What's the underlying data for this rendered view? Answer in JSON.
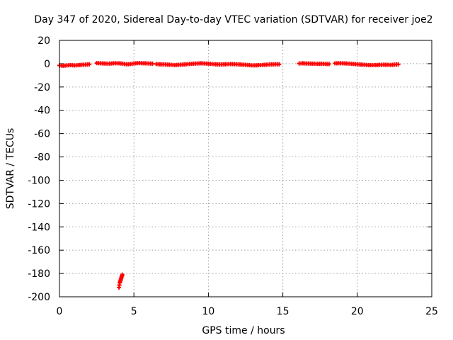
{
  "chart_data": {
    "type": "scatter",
    "title": "Day 347 of 2020, Sidereal Day-to-day VTEC variation (SDTVAR) for receiver joe2",
    "xlabel": "GPS time / hours",
    "ylabel": "SDTVAR / TECUs",
    "xlim": [
      0,
      25
    ],
    "ylim": [
      -200,
      20
    ],
    "x_ticks": [
      0,
      5,
      10,
      15,
      20,
      25
    ],
    "y_ticks": [
      20,
      0,
      -20,
      -40,
      -60,
      -80,
      -100,
      -120,
      -140,
      -160,
      -180,
      -200
    ],
    "grid": true,
    "marker": "plus",
    "color": "#ff0000",
    "series": [
      {
        "segments": [
          {
            "x": [
              0.0,
              0.25,
              0.5,
              0.75,
              1.0,
              1.25,
              1.5,
              1.75,
              2.0
            ],
            "y": [
              -1.5,
              -1.8,
              -1.5,
              -1.2,
              -1.5,
              -1.3,
              -1.0,
              -0.8,
              -0.5
            ]
          },
          {
            "x": [
              2.5,
              2.75,
              3.0,
              3.25,
              3.5,
              3.75,
              4.0,
              4.25,
              4.5,
              4.75,
              5.0,
              5.25,
              5.5,
              5.75,
              6.0,
              6.25
            ],
            "y": [
              0.5,
              0.3,
              0.2,
              0.0,
              0.2,
              0.4,
              0.3,
              0.0,
              -0.5,
              -0.3,
              0.2,
              0.5,
              0.4,
              0.3,
              0.2,
              0.0
            ]
          },
          {
            "x": [
              6.5,
              6.75,
              7.0,
              7.25,
              7.5,
              7.75,
              8.0,
              8.25,
              8.5,
              8.75,
              9.0,
              9.25,
              9.5,
              9.75,
              10.0,
              10.25,
              10.5,
              10.75,
              11.0,
              11.25,
              11.5,
              11.75,
              12.0,
              12.25,
              12.5,
              12.75,
              13.0,
              13.25,
              13.5,
              13.75,
              14.0,
              14.25,
              14.5,
              14.75
            ],
            "y": [
              -0.3,
              -0.5,
              -0.6,
              -0.8,
              -1.0,
              -1.2,
              -1.0,
              -0.8,
              -0.5,
              -0.2,
              0.0,
              0.2,
              0.3,
              0.2,
              0.0,
              -0.3,
              -0.5,
              -0.7,
              -0.6,
              -0.4,
              -0.3,
              -0.4,
              -0.6,
              -0.8,
              -1.0,
              -1.3,
              -1.5,
              -1.4,
              -1.2,
              -1.0,
              -0.8,
              -0.6,
              -0.5,
              -0.5
            ]
          },
          {
            "x": [
              16.1,
              16.35,
              16.6,
              16.85,
              17.1,
              17.35,
              17.6,
              17.85,
              18.1
            ],
            "y": [
              0.2,
              0.3,
              0.2,
              0.1,
              0.0,
              -0.1,
              0.0,
              -0.2,
              -0.3
            ]
          },
          {
            "x": [
              18.5,
              18.75,
              19.0,
              19.25,
              19.5,
              19.75,
              20.0,
              20.25,
              20.5,
              20.75,
              21.0,
              21.25,
              21.5,
              21.75,
              22.0,
              22.25,
              22.5,
              22.75
            ],
            "y": [
              0.3,
              0.4,
              0.3,
              0.2,
              0.0,
              -0.2,
              -0.5,
              -0.8,
              -1.0,
              -1.2,
              -1.3,
              -1.2,
              -1.0,
              -0.9,
              -1.0,
              -1.1,
              -0.8,
              -0.6
            ]
          },
          {
            "x": [
              4.0,
              4.02,
              4.05,
              4.07,
              4.1,
              4.12,
              4.15,
              4.17,
              4.2,
              4.22
            ],
            "y": [
              -192,
              -190,
              -188,
              -187,
              -186,
              -185,
              -184,
              -183,
              -182,
              -181
            ]
          }
        ]
      }
    ]
  }
}
